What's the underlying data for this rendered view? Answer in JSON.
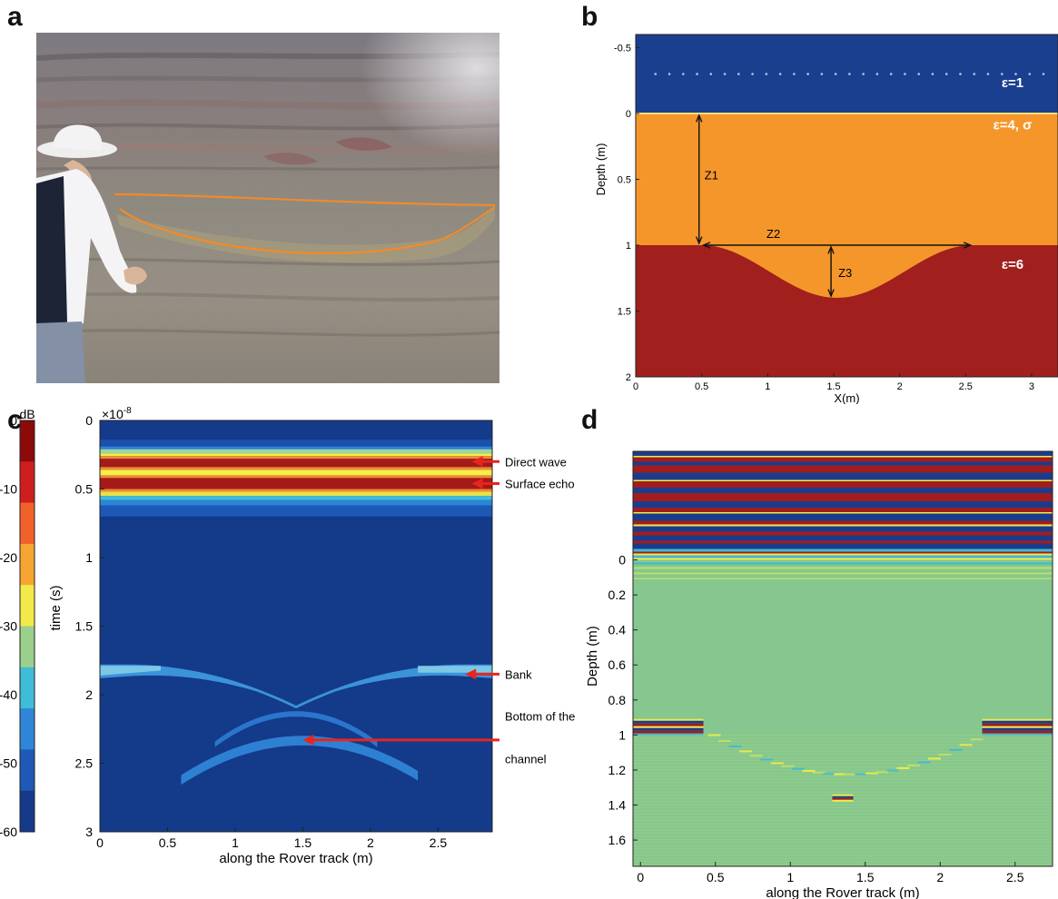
{
  "figure": {
    "panels": {
      "a": {
        "letter": "a"
      },
      "b": {
        "letter": "b"
      },
      "c": {
        "letter": "c"
      },
      "d": {
        "letter": "d"
      }
    }
  },
  "panel_a": {
    "content": "photo-outcrop-with-person",
    "outline_color": "#f28a2a"
  },
  "chart_data": [
    {
      "panel": "b",
      "type": "heatmap",
      "xlabel": "X(m)",
      "ylabel": "Depth (m)",
      "xlim": [
        0,
        3.2
      ],
      "ylim": [
        -0.6,
        2
      ],
      "y_reversed": true,
      "x_ticks": [
        0,
        0.5,
        1,
        1.5,
        2,
        2.5,
        3
      ],
      "y_ticks": [
        -0.5,
        0,
        0.5,
        1,
        1.5,
        2
      ],
      "layers": [
        {
          "label": "ε=1",
          "color": "#1b3f8f",
          "top": -0.6,
          "bottom": 0
        },
        {
          "label": "ε=4, σ",
          "color": "#f5962b",
          "top": 0,
          "bottom": 1
        },
        {
          "label": "ε=6",
          "color": "#a1201d",
          "top": 1,
          "bottom": 2
        }
      ],
      "channel": {
        "x_start": 0.5,
        "x_end": 2.55,
        "center": 1.5,
        "depth": 1.4
      },
      "antenna_depth": -0.3,
      "dimensions": [
        {
          "label": "Z1",
          "x": 0.48,
          "y1": 0.0,
          "y2": 1.0
        },
        {
          "label": "Z2",
          "y": 1.0,
          "x1": 0.5,
          "x2": 2.55
        },
        {
          "label": "Z3",
          "x": 1.48,
          "y1": 1.0,
          "y2": 1.4
        }
      ]
    },
    {
      "panel": "c",
      "type": "heatmap",
      "xlabel": "along the Rover track (m)",
      "ylabel": "time (s)",
      "y_exponent_label": "×10",
      "y_exponent_power": "-8",
      "xlim": [
        0,
        2.9
      ],
      "ylim": [
        0,
        3
      ],
      "y_reversed": true,
      "x_ticks": [
        0,
        0.5,
        1,
        1.5,
        2,
        2.5
      ],
      "y_ticks": [
        0,
        0.5,
        1,
        1.5,
        2,
        2.5,
        3
      ],
      "colorbar": {
        "label": "dB",
        "min": -60,
        "max": 0,
        "ticks": [
          0,
          -10,
          -20,
          -30,
          -40,
          -50,
          -60
        ]
      },
      "annotations": [
        {
          "text": "Direct wave",
          "x": 2.75,
          "y": 0.3
        },
        {
          "text": "Surface echo",
          "x": 2.75,
          "y": 0.46
        },
        {
          "text": "Bank",
          "x": 2.7,
          "y": 1.85
        },
        {
          "text": "Bottom of the",
          "x": 1.5,
          "y": 2.33
        },
        {
          "text": "channel",
          "x": 1.5,
          "y": 2.33
        }
      ]
    },
    {
      "panel": "d",
      "type": "heatmap",
      "xlabel": "along the Rover track (m)",
      "ylabel": "Depth (m)",
      "xlim": [
        -0.05,
        2.75
      ],
      "ylim": [
        -0.62,
        1.75
      ],
      "y_reversed": true,
      "x_ticks": [
        0,
        0.5,
        1,
        1.5,
        2,
        2.5
      ],
      "y_ticks": [
        0,
        0.2,
        0.4,
        0.6,
        0.8,
        1,
        1.2,
        1.4,
        1.6
      ],
      "y_tick_labels": [
        "0",
        "0.2",
        "0.4",
        "0.6",
        "0.8",
        "1",
        "1.2",
        "1.4",
        "1.6"
      ],
      "reflector_depth": 0.95,
      "bottom_depth": 1.36
    }
  ]
}
